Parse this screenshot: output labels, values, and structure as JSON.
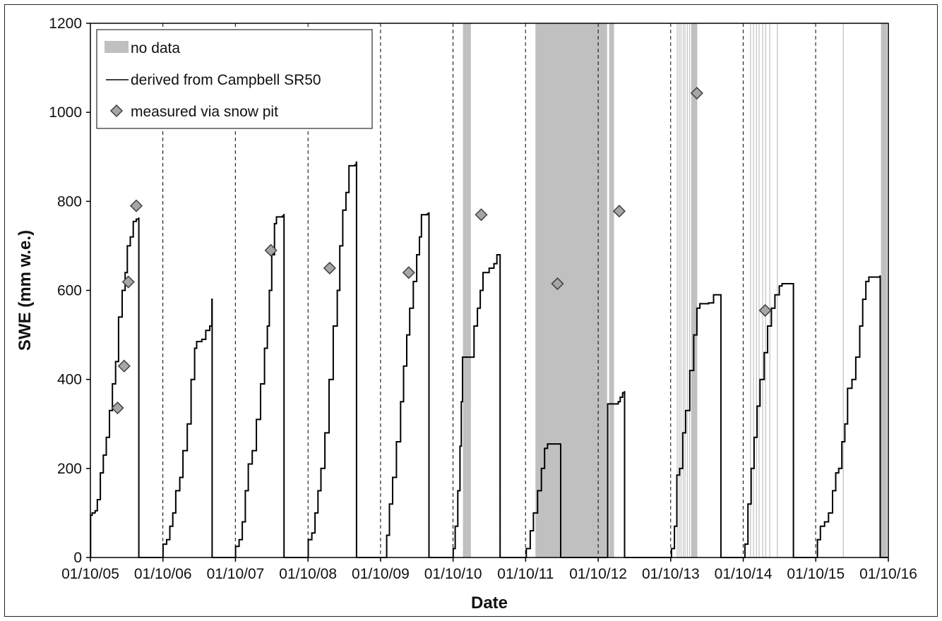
{
  "chart_data": {
    "type": "line",
    "xlabel": "Date",
    "ylabel": "SWE (mm w.e.)",
    "ylim": [
      0,
      1200
    ],
    "yticks": [
      0,
      200,
      400,
      600,
      800,
      1000,
      1200
    ],
    "xlim": [
      "2005-10-01",
      "2016-10-01"
    ],
    "xtick_labels": [
      "01/10/05",
      "01/10/06",
      "01/10/07",
      "01/10/08",
      "01/10/09",
      "01/10/10",
      "01/10/11",
      "01/10/12",
      "01/10/13",
      "01/10/14",
      "01/10/15",
      "01/10/16"
    ],
    "water_year_boundaries": [
      "2006-10-01",
      "2007-10-01",
      "2008-10-01",
      "2009-10-01",
      "2010-10-01",
      "2011-10-01",
      "2012-10-01",
      "2013-10-01",
      "2014-10-01",
      "2015-10-01"
    ],
    "grid": false,
    "legend_position": "top-left",
    "colors": {
      "line": "#000000",
      "no_data": "#c0c0c0",
      "marker_fill": "#a6a6a6",
      "marker_stroke": "#404040"
    },
    "legend": {
      "no_data": "no data",
      "line": "derived from Campbell SR50",
      "markers": "measured via snow pit"
    },
    "no_data_periods": [
      [
        "2010-11-20",
        "2010-12-30"
      ],
      [
        "2011-11-20",
        "2012-11-15"
      ],
      [
        "2012-11-25",
        "2012-12-20"
      ],
      [
        "2013-11-01",
        "2013-11-03"
      ],
      [
        "2013-11-10",
        "2013-11-12"
      ],
      [
        "2013-11-20",
        "2013-11-22"
      ],
      [
        "2013-12-01",
        "2013-12-03"
      ],
      [
        "2013-12-10",
        "2013-12-13"
      ],
      [
        "2013-12-22",
        "2013-12-24"
      ],
      [
        "2014-01-02",
        "2014-01-04"
      ],
      [
        "2014-01-12",
        "2014-02-12"
      ],
      [
        "2014-11-05",
        "2014-11-07"
      ],
      [
        "2014-11-20",
        "2014-11-22"
      ],
      [
        "2014-12-05",
        "2014-12-07"
      ],
      [
        "2014-12-18",
        "2014-12-20"
      ],
      [
        "2015-01-05",
        "2015-01-07"
      ],
      [
        "2015-01-20",
        "2015-01-22"
      ],
      [
        "2015-02-10",
        "2015-02-12"
      ],
      [
        "2015-03-20",
        "2015-03-22"
      ],
      [
        "2016-02-15",
        "2016-02-18"
      ],
      [
        "2016-08-25",
        "2016-09-25"
      ]
    ],
    "series": [
      {
        "name": "derived from Campbell SR50",
        "points": [
          [
            "2005-10-01",
            0
          ],
          [
            "2005-10-02",
            95
          ],
          [
            "2005-10-10",
            100
          ],
          [
            "2005-10-25",
            105
          ],
          [
            "2005-11-05",
            130
          ],
          [
            "2005-11-20",
            190
          ],
          [
            "2005-12-05",
            230
          ],
          [
            "2005-12-20",
            270
          ],
          [
            "2006-01-05",
            330
          ],
          [
            "2006-01-20",
            390
          ],
          [
            "2006-02-05",
            440
          ],
          [
            "2006-02-20",
            540
          ],
          [
            "2006-03-10",
            600
          ],
          [
            "2006-03-25",
            640
          ],
          [
            "2006-04-05",
            700
          ],
          [
            "2006-04-20",
            720
          ],
          [
            "2006-05-05",
            755
          ],
          [
            "2006-05-20",
            760
          ],
          [
            "2006-06-01",
            762
          ],
          [
            "2006-06-02",
            0
          ],
          [
            "2006-10-01",
            0
          ],
          [
            "2006-10-02",
            30
          ],
          [
            "2006-10-20",
            40
          ],
          [
            "2006-11-05",
            70
          ],
          [
            "2006-11-20",
            100
          ],
          [
            "2006-12-05",
            150
          ],
          [
            "2006-12-25",
            180
          ],
          [
            "2007-01-10",
            240
          ],
          [
            "2007-02-01",
            300
          ],
          [
            "2007-02-20",
            400
          ],
          [
            "2007-03-10",
            470
          ],
          [
            "2007-03-20",
            485
          ],
          [
            "2007-04-15",
            490
          ],
          [
            "2007-05-05",
            510
          ],
          [
            "2007-05-25",
            520
          ],
          [
            "2007-06-05",
            580
          ],
          [
            "2007-06-06",
            0
          ],
          [
            "2007-10-01",
            0
          ],
          [
            "2007-10-02",
            25
          ],
          [
            "2007-10-20",
            40
          ],
          [
            "2007-11-05",
            80
          ],
          [
            "2007-11-20",
            150
          ],
          [
            "2007-12-05",
            210
          ],
          [
            "2007-12-25",
            240
          ],
          [
            "2008-01-15",
            310
          ],
          [
            "2008-02-05",
            390
          ],
          [
            "2008-02-25",
            470
          ],
          [
            "2008-03-10",
            520
          ],
          [
            "2008-03-20",
            600
          ],
          [
            "2008-04-01",
            680
          ],
          [
            "2008-04-15",
            750
          ],
          [
            "2008-04-25",
            765
          ],
          [
            "2008-05-25",
            767
          ],
          [
            "2008-06-01",
            770
          ],
          [
            "2008-06-02",
            0
          ],
          [
            "2008-10-01",
            0
          ],
          [
            "2008-10-02",
            40
          ],
          [
            "2008-10-20",
            55
          ],
          [
            "2008-11-05",
            100
          ],
          [
            "2008-11-20",
            150
          ],
          [
            "2008-12-05",
            200
          ],
          [
            "2008-12-25",
            280
          ],
          [
            "2009-01-15",
            400
          ],
          [
            "2009-02-05",
            520
          ],
          [
            "2009-02-25",
            600
          ],
          [
            "2009-03-10",
            700
          ],
          [
            "2009-03-25",
            780
          ],
          [
            "2009-04-10",
            820
          ],
          [
            "2009-04-25",
            880
          ],
          [
            "2009-05-25",
            882
          ],
          [
            "2009-06-01",
            888
          ],
          [
            "2009-06-02",
            0
          ],
          [
            "2009-10-01",
            0
          ],
          [
            "2009-10-20",
            0
          ],
          [
            "2009-11-01",
            50
          ],
          [
            "2009-11-15",
            120
          ],
          [
            "2009-12-01",
            180
          ],
          [
            "2009-12-20",
            260
          ],
          [
            "2010-01-10",
            350
          ],
          [
            "2010-01-25",
            430
          ],
          [
            "2010-02-10",
            500
          ],
          [
            "2010-02-25",
            560
          ],
          [
            "2010-03-15",
            620
          ],
          [
            "2010-04-01",
            680
          ],
          [
            "2010-04-15",
            720
          ],
          [
            "2010-04-25",
            770
          ],
          [
            "2010-05-25",
            772
          ],
          [
            "2010-06-01",
            774
          ],
          [
            "2010-06-02",
            0
          ],
          [
            "2010-10-01",
            0
          ],
          [
            "2010-10-02",
            20
          ],
          [
            "2010-10-12",
            70
          ],
          [
            "2010-10-25",
            150
          ],
          [
            "2010-11-05",
            250
          ],
          [
            "2010-11-12",
            350
          ],
          [
            "2010-11-18",
            450
          ],
          [
            "2011-01-05",
            450
          ],
          [
            "2011-01-15",
            520
          ],
          [
            "2011-02-01",
            560
          ],
          [
            "2011-02-15",
            600
          ],
          [
            "2011-03-01",
            640
          ],
          [
            "2011-04-01",
            650
          ],
          [
            "2011-04-25",
            660
          ],
          [
            "2011-05-10",
            680
          ],
          [
            "2011-05-25",
            680
          ],
          [
            "2011-05-26",
            0
          ],
          [
            "2011-10-01",
            0
          ],
          [
            "2011-10-05",
            20
          ],
          [
            "2011-10-25",
            60
          ],
          [
            "2011-11-10",
            100
          ],
          [
            "2011-12-01",
            150
          ],
          [
            "2011-12-20",
            200
          ],
          [
            "2012-01-05",
            245
          ],
          [
            "2012-01-20",
            255
          ],
          [
            "2012-03-25",
            255
          ],
          [
            "2012-03-26",
            0
          ],
          [
            "2012-11-16",
            0
          ],
          [
            "2012-11-18",
            345
          ],
          [
            "2013-01-10",
            350
          ],
          [
            "2013-01-20",
            360
          ],
          [
            "2013-02-01",
            370
          ],
          [
            "2013-02-10",
            372
          ],
          [
            "2013-02-11",
            0
          ],
          [
            "2013-10-01",
            0
          ],
          [
            "2013-10-05",
            20
          ],
          [
            "2013-10-20",
            70
          ],
          [
            "2013-11-01",
            185
          ],
          [
            "2013-11-15",
            200
          ],
          [
            "2013-12-01",
            280
          ],
          [
            "2013-12-15",
            330
          ],
          [
            "2014-01-05",
            420
          ],
          [
            "2014-01-25",
            500
          ],
          [
            "2014-02-10",
            560
          ],
          [
            "2014-02-25",
            570
          ],
          [
            "2014-04-10",
            572
          ],
          [
            "2014-05-05",
            590
          ],
          [
            "2014-06-10",
            590
          ],
          [
            "2014-06-11",
            0
          ],
          [
            "2014-10-01",
            0
          ],
          [
            "2014-10-10",
            30
          ],
          [
            "2014-10-25",
            120
          ],
          [
            "2014-11-10",
            200
          ],
          [
            "2014-11-25",
            270
          ],
          [
            "2014-12-10",
            340
          ],
          [
            "2014-12-25",
            400
          ],
          [
            "2015-01-15",
            460
          ],
          [
            "2015-02-01",
            520
          ],
          [
            "2015-02-20",
            560
          ],
          [
            "2015-03-10",
            590
          ],
          [
            "2015-04-01",
            610
          ],
          [
            "2015-04-15",
            615
          ],
          [
            "2015-06-10",
            615
          ],
          [
            "2015-06-11",
            0
          ],
          [
            "2015-10-01",
            0
          ],
          [
            "2015-10-10",
            40
          ],
          [
            "2015-10-25",
            70
          ],
          [
            "2015-11-15",
            80
          ],
          [
            "2015-12-05",
            100
          ],
          [
            "2015-12-25",
            150
          ],
          [
            "2016-01-10",
            190
          ],
          [
            "2016-01-25",
            200
          ],
          [
            "2016-02-10",
            260
          ],
          [
            "2016-02-25",
            300
          ],
          [
            "2016-03-10",
            380
          ],
          [
            "2016-04-01",
            400
          ],
          [
            "2016-04-20",
            450
          ],
          [
            "2016-05-10",
            520
          ],
          [
            "2016-05-25",
            580
          ],
          [
            "2016-06-10",
            620
          ],
          [
            "2016-06-25",
            630
          ],
          [
            "2016-08-20",
            632
          ],
          [
            "2016-08-21",
            0
          ],
          [
            "2016-10-01",
            0
          ]
        ]
      },
      {
        "name": "measured via snow pit",
        "points": [
          [
            "2006-02-15",
            336
          ],
          [
            "2006-03-20",
            430
          ],
          [
            "2006-04-10",
            619
          ],
          [
            "2006-05-20",
            790
          ],
          [
            "2008-03-28",
            690
          ],
          [
            "2009-01-18",
            650
          ],
          [
            "2010-02-20",
            640
          ],
          [
            "2011-02-20",
            770
          ],
          [
            "2012-03-10",
            615
          ],
          [
            "2013-01-15",
            778
          ],
          [
            "2014-02-10",
            1043
          ],
          [
            "2015-01-20",
            555
          ]
        ]
      }
    ]
  }
}
